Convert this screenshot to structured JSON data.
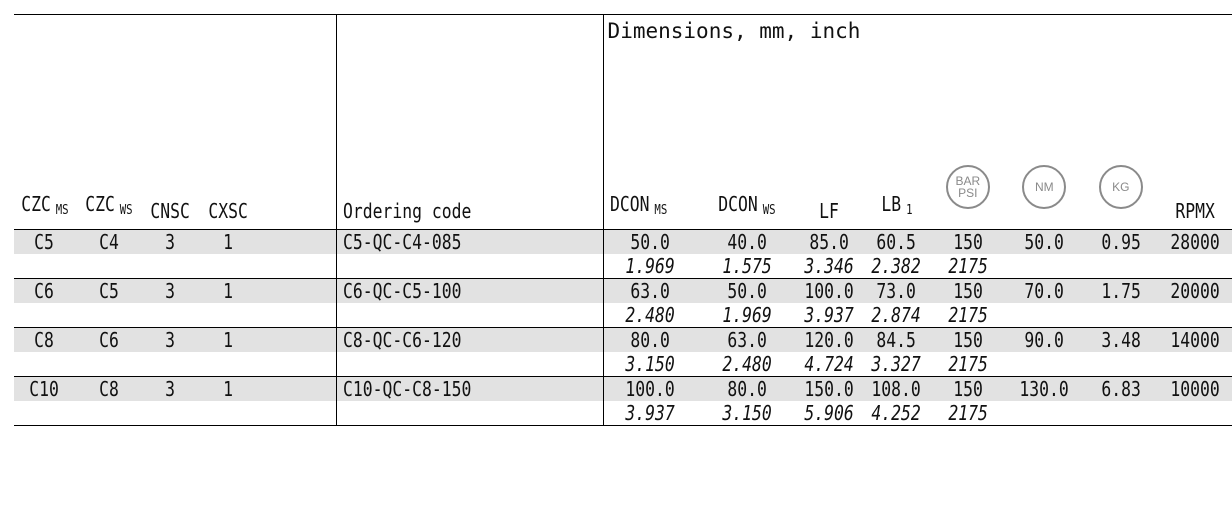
{
  "header": {
    "dimensions_title": "Dimensions, mm, inch",
    "cols": {
      "czc_ms": {
        "main": "CZC",
        "sub": "MS"
      },
      "czc_ws": {
        "main": "CZC",
        "sub": "WS"
      },
      "cnsc": "CNSC",
      "cxsc": "CXSC",
      "ordering_code": "Ordering code",
      "dcon_ms": {
        "main": "DCON",
        "sub": "MS"
      },
      "dcon_ws": {
        "main": "DCON",
        "sub": "WS"
      },
      "lf": "LF",
      "lb1": {
        "main": "LB",
        "sub": "1"
      },
      "bar_psi": {
        "line1": "BAR",
        "line2": "PSI"
      },
      "nm": "NM",
      "kg": "KG",
      "rpmx": "RPMX"
    }
  },
  "rows": [
    {
      "czc_ms": "C5",
      "czc_ws": "C4",
      "cnsc": "3",
      "cxsc": "1",
      "code": "C5-QC-C4-085",
      "metric": {
        "dcon_ms": "50.0",
        "dcon_ws": "40.0",
        "lf": "85.0",
        "lb1": "60.5",
        "bar": "150",
        "nm": "50.0",
        "kg": "0.95",
        "rpmx": "28000"
      },
      "inch": {
        "dcon_ms": "1.969",
        "dcon_ws": "1.575",
        "lf": "3.346",
        "lb1": "2.382",
        "psi": "2175"
      }
    },
    {
      "czc_ms": "C6",
      "czc_ws": "C5",
      "cnsc": "3",
      "cxsc": "1",
      "code": "C6-QC-C5-100",
      "metric": {
        "dcon_ms": "63.0",
        "dcon_ws": "50.0",
        "lf": "100.0",
        "lb1": "73.0",
        "bar": "150",
        "nm": "70.0",
        "kg": "1.75",
        "rpmx": "20000"
      },
      "inch": {
        "dcon_ms": "2.480",
        "dcon_ws": "1.969",
        "lf": "3.937",
        "lb1": "2.874",
        "psi": "2175"
      }
    },
    {
      "czc_ms": "C8",
      "czc_ws": "C6",
      "cnsc": "3",
      "cxsc": "1",
      "code": "C8-QC-C6-120",
      "metric": {
        "dcon_ms": "80.0",
        "dcon_ws": "63.0",
        "lf": "120.0",
        "lb1": "84.5",
        "bar": "150",
        "nm": "90.0",
        "kg": "3.48",
        "rpmx": "14000"
      },
      "inch": {
        "dcon_ms": "3.150",
        "dcon_ws": "2.480",
        "lf": "4.724",
        "lb1": "3.327",
        "psi": "2175"
      }
    },
    {
      "czc_ms": "C10",
      "czc_ws": "C8",
      "cnsc": "3",
      "cxsc": "1",
      "code": "C10-QC-C8-150",
      "metric": {
        "dcon_ms": "100.0",
        "dcon_ws": "80.0",
        "lf": "150.0",
        "lb1": "108.0",
        "bar": "150",
        "nm": "130.0",
        "kg": "6.83",
        "rpmx": "10000"
      },
      "inch": {
        "dcon_ms": "3.937",
        "dcon_ws": "3.150",
        "lf": "5.906",
        "lb1": "4.252",
        "psi": "2175"
      }
    }
  ],
  "style": {
    "row_shade": "#e2e2e2",
    "icon_gray": "#8a8a8a"
  }
}
